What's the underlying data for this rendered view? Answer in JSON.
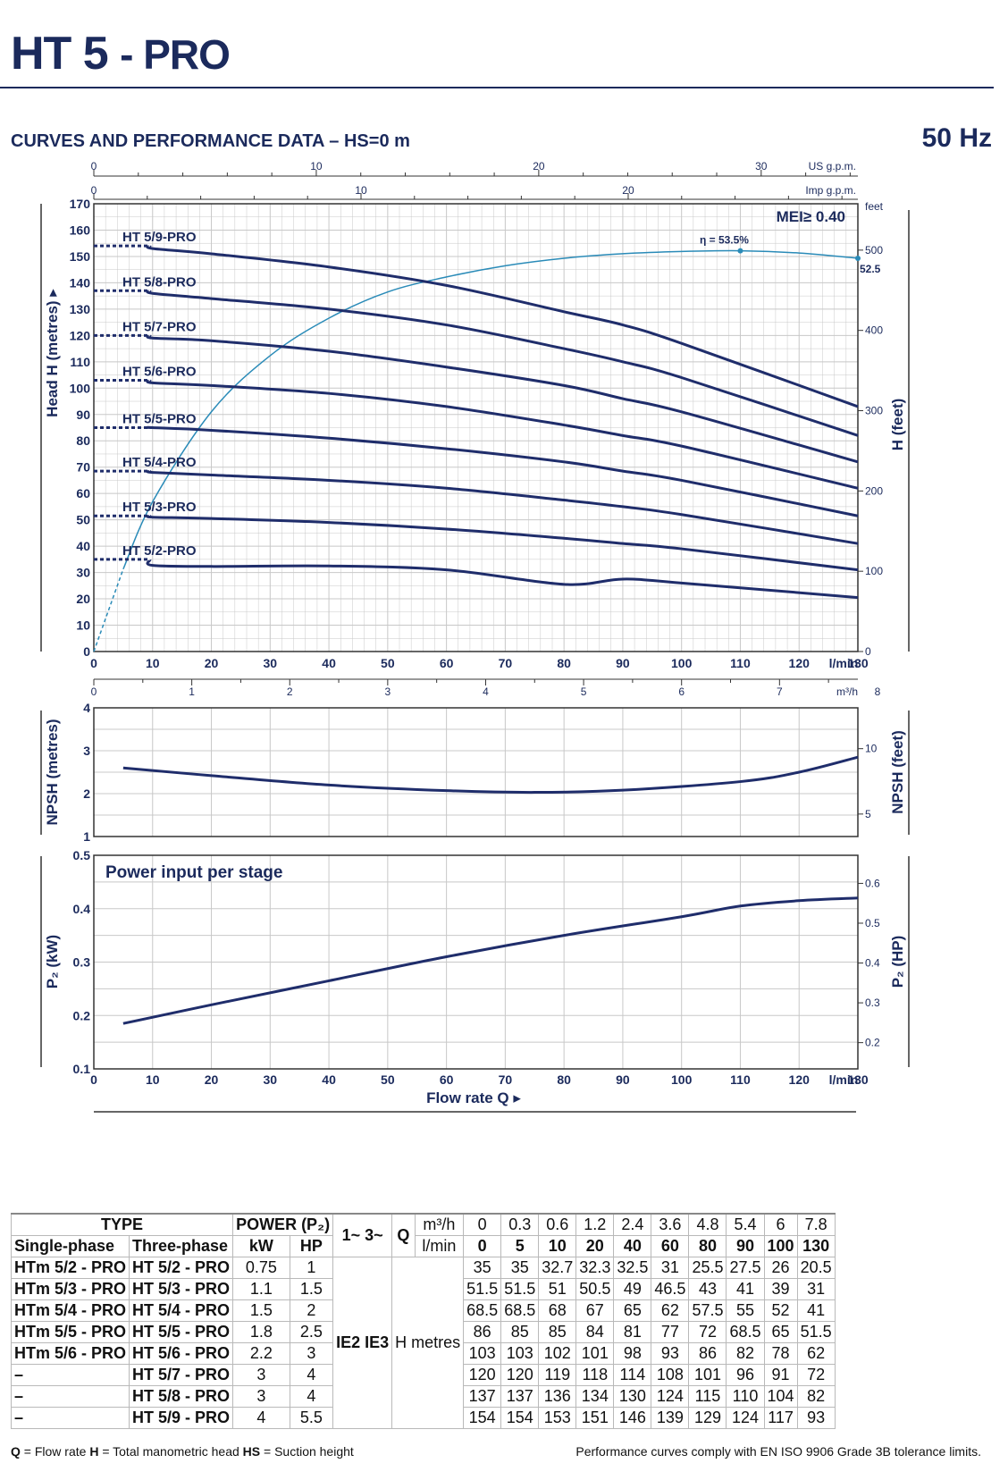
{
  "header": {
    "title_main": "HT 5",
    "title_suffix": "- PRO",
    "subtitle": "CURVES AND PERFORMANCE DATA  –  HS=0 m",
    "frequency": "50 Hz"
  },
  "chart_data": [
    {
      "type": "line",
      "name": "head-curves",
      "xlabel": "l/min",
      "ylabel": "Head H (metres)",
      "ylabel_right": "H (feet)",
      "xlim": [
        0,
        130
      ],
      "ylim": [
        0,
        170
      ],
      "x_ticks": [
        0,
        10,
        20,
        30,
        40,
        50,
        60,
        70,
        80,
        90,
        100,
        110,
        120,
        130
      ],
      "y_ticks": [
        0,
        10,
        20,
        30,
        40,
        50,
        60,
        70,
        80,
        90,
        100,
        110,
        120,
        130,
        140,
        150,
        160,
        170
      ],
      "feet_ticks": [
        0,
        100,
        200,
        300,
        400,
        500
      ],
      "feet_label": "feet",
      "us_gpm_ticks": [
        0,
        10,
        20,
        30
      ],
      "us_gpm_label": "US g.p.m.",
      "imp_gpm_ticks": [
        0,
        10,
        20
      ],
      "imp_gpm_label": "Imp g.p.m.",
      "m3h_ticks": [
        0,
        1,
        2,
        3,
        4,
        5,
        6,
        7,
        8
      ],
      "m3h_label": "m³/h",
      "annotation_mei": "MEI≥ 0.40",
      "x": [
        5,
        10,
        20,
        40,
        60,
        80,
        90,
        100,
        130
      ],
      "series": [
        {
          "name": "HT 5/9-PRO",
          "values": [
            154,
            153,
            151,
            146,
            139,
            129,
            124,
            117,
            93
          ]
        },
        {
          "name": "HT 5/8-PRO",
          "values": [
            137,
            136,
            134,
            130,
            124,
            115,
            110,
            104,
            82
          ]
        },
        {
          "name": "HT 5/7-PRO",
          "values": [
            120,
            119,
            118,
            114,
            108,
            101,
            96,
            91,
            72
          ]
        },
        {
          "name": "HT 5/6-PRO",
          "values": [
            103,
            102,
            101,
            98,
            93,
            86,
            82,
            78,
            62
          ]
        },
        {
          "name": "HT 5/5-PRO",
          "values": [
            85,
            85,
            84,
            81,
            77,
            72,
            68.5,
            65,
            51.5
          ]
        },
        {
          "name": "HT 5/4-PRO",
          "values": [
            68.5,
            68,
            67,
            65,
            62,
            57.5,
            55,
            52,
            41
          ]
        },
        {
          "name": "HT 5/3-PRO",
          "values": [
            51.5,
            51,
            50.5,
            49,
            46.5,
            43,
            41,
            39,
            31
          ]
        },
        {
          "name": "HT 5/2-PRO",
          "values": [
            35,
            32.7,
            32.3,
            32.5,
            31,
            25.5,
            27.5,
            26,
            20.5
          ]
        }
      ],
      "efficiency": {
        "x": [
          0,
          5,
          10,
          20,
          30,
          40,
          50,
          60,
          70,
          80,
          90,
          100,
          110,
          120,
          130
        ],
        "values": [
          0,
          11,
          20,
          32,
          39.5,
          44.5,
          48,
          50,
          51.5,
          52.5,
          53.1,
          53.4,
          53.5,
          53.2,
          52.5
        ],
        "peak_label": "η = 53.5%",
        "end_label": "52.5"
      }
    },
    {
      "type": "line",
      "name": "npsh",
      "ylabel": "NPSH (metres)",
      "ylabel_right": "NPSH (feet)",
      "ylim": [
        1,
        4
      ],
      "y_ticks": [
        1,
        2,
        3,
        4
      ],
      "feet_ticks": [
        5,
        10
      ],
      "x": [
        5,
        20,
        40,
        60,
        75,
        90,
        110,
        120,
        130
      ],
      "values": [
        2.6,
        2.42,
        2.2,
        2.07,
        2.03,
        2.08,
        2.28,
        2.5,
        2.85
      ]
    },
    {
      "type": "line",
      "name": "power",
      "title": "Power input per stage",
      "ylabel": "P₂ (kW)",
      "ylabel_right": "P₂ (HP)",
      "xlabel": "Flow rate Q",
      "xunit": "l/min",
      "ylim": [
        0.1,
        0.5
      ],
      "y_ticks": [
        0.1,
        0.2,
        0.3,
        0.4,
        0.5
      ],
      "hp_ticks": [
        0.2,
        0.3,
        0.4,
        0.5,
        0.6
      ],
      "x": [
        5,
        20,
        40,
        60,
        80,
        100,
        110,
        120,
        130
      ],
      "values": [
        0.185,
        0.22,
        0.265,
        0.31,
        0.35,
        0.385,
        0.405,
        0.415,
        0.42
      ]
    }
  ],
  "table": {
    "type_header": "TYPE",
    "power_header": "POWER (P₂)",
    "single_header": "Single-phase",
    "three_header": "Three-phase",
    "kw_header": "kW",
    "hp_header": "HP",
    "phase_header": "1~ 3~",
    "q_label": "Q",
    "m3h_label": "m³/h",
    "lmin_label": "l/min",
    "m3h_values": [
      "0",
      "0.3",
      "0.6",
      "1.2",
      "2.4",
      "3.6",
      "4.8",
      "5.4",
      "6",
      "7.8"
    ],
    "lmin_values": [
      "0",
      "5",
      "10",
      "20",
      "40",
      "60",
      "80",
      "90",
      "100",
      "130"
    ],
    "ie2": "IE2",
    "ie3": "IE3",
    "h_label": "H metres",
    "rows": [
      {
        "single": "HTm 5/2 - PRO",
        "three": "HT 5/2 - PRO",
        "kw": "0.75",
        "hp": "1",
        "h": [
          "35",
          "35",
          "32.7",
          "32.3",
          "32.5",
          "31",
          "25.5",
          "27.5",
          "26",
          "20.5"
        ]
      },
      {
        "single": "HTm 5/3 - PRO",
        "three": "HT 5/3 - PRO",
        "kw": "1.1",
        "hp": "1.5",
        "h": [
          "51.5",
          "51.5",
          "51",
          "50.5",
          "49",
          "46.5",
          "43",
          "41",
          "39",
          "31"
        ]
      },
      {
        "single": "HTm 5/4 - PRO",
        "three": "HT 5/4 - PRO",
        "kw": "1.5",
        "hp": "2",
        "h": [
          "68.5",
          "68.5",
          "68",
          "67",
          "65",
          "62",
          "57.5",
          "55",
          "52",
          "41"
        ]
      },
      {
        "single": "HTm 5/5 - PRO",
        "three": "HT 5/5 - PRO",
        "kw": "1.8",
        "hp": "2.5",
        "h": [
          "86",
          "85",
          "85",
          "84",
          "81",
          "77",
          "72",
          "68.5",
          "65",
          "51.5"
        ]
      },
      {
        "single": "HTm 5/6 - PRO",
        "three": "HT 5/6 - PRO",
        "kw": "2.2",
        "hp": "3",
        "h": [
          "103",
          "103",
          "102",
          "101",
          "98",
          "93",
          "86",
          "82",
          "78",
          "62"
        ]
      },
      {
        "single": "–",
        "three": "HT 5/7 - PRO",
        "kw": "3",
        "hp": "4",
        "h": [
          "120",
          "120",
          "119",
          "118",
          "114",
          "108",
          "101",
          "96",
          "91",
          "72"
        ]
      },
      {
        "single": "–",
        "three": "HT 5/8 - PRO",
        "kw": "3",
        "hp": "4",
        "h": [
          "137",
          "137",
          "136",
          "134",
          "130",
          "124",
          "115",
          "110",
          "104",
          "82"
        ]
      },
      {
        "single": "–",
        "three": "HT 5/9 - PRO",
        "kw": "4",
        "hp": "5.5",
        "h": [
          "154",
          "154",
          "153",
          "151",
          "146",
          "139",
          "129",
          "124",
          "117",
          "93"
        ]
      }
    ]
  },
  "footer": {
    "q_key": "Q",
    "q_text": " = Flow rate  ",
    "h_key": "H",
    "h_text": " = Total manometric head  ",
    "hs_key": "HS",
    "hs_text": " = Suction height",
    "note": "Performance curves comply with EN ISO 9906 Grade 3B tolerance limits."
  },
  "colors": {
    "brand": "#1b2a5c",
    "curve": "#1f2d6b",
    "efficiency": "#2a8bb8",
    "grid": "#c8c8c8"
  }
}
